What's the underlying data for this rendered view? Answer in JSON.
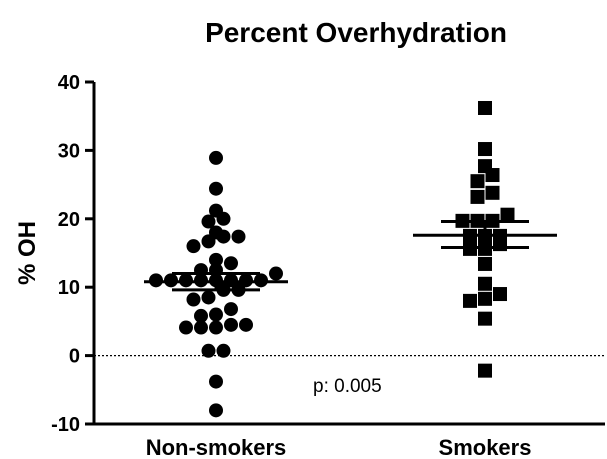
{
  "chart_data": {
    "type": "scatter",
    "title": "Percent Overhydration",
    "ylabel": "% OH",
    "ylim": [
      -10,
      40
    ],
    "yticks": [
      -10,
      0,
      10,
      20,
      30,
      40
    ],
    "y_tick_labels": [
      "-10",
      "0",
      "10",
      "20",
      "30",
      "40"
    ],
    "categories": [
      "Non-smokers",
      "Smokers"
    ],
    "reference_line": {
      "y": 0,
      "style": "dotted"
    },
    "annotation": "p: 0.005",
    "grid": false,
    "series": [
      {
        "marker": "circle",
        "category": "Non-smokers",
        "mean": 10.8,
        "sem_low": 9.6,
        "sem_high": 12.0,
        "values": [
          28.9,
          24.4,
          21.2,
          20.0,
          19.6,
          18.0,
          17.4,
          17.4,
          16.7,
          16.0,
          14.0,
          13.5,
          12.5,
          12.5,
          12.0,
          11.0,
          11.0,
          11.0,
          11.0,
          11.0,
          11.0,
          11.0,
          11.0,
          9.6,
          9.6,
          8.5,
          8.2,
          6.8,
          6.0,
          5.8,
          4.5,
          4.1,
          4.1,
          4.1,
          4.5,
          0.7,
          0.7,
          -3.8,
          -8.0
        ]
      },
      {
        "marker": "square",
        "category": "Smokers",
        "mean": 17.6,
        "sem_low": 15.8,
        "sem_high": 19.6,
        "values": [
          36.2,
          30.2,
          27.7,
          26.4,
          25.5,
          23.8,
          23.2,
          20.6,
          19.7,
          19.7,
          19.7,
          17.5,
          17.5,
          17.5,
          16.3,
          15.6,
          15.6,
          13.4,
          10.5,
          9.0,
          8.3,
          8.0,
          5.4,
          -2.2
        ]
      }
    ]
  }
}
